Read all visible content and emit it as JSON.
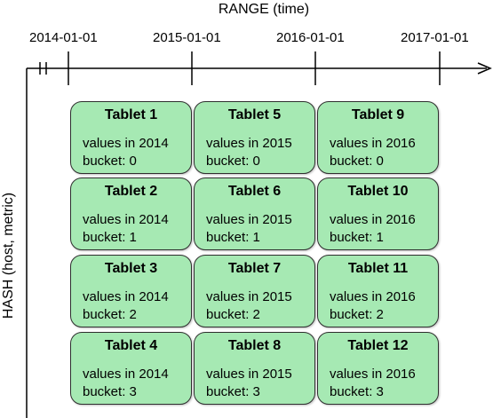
{
  "range_axis": {
    "title": "RANGE (time)",
    "ticks": [
      "2014-01-01",
      "2015-01-01",
      "2016-01-01",
      "2017-01-01"
    ]
  },
  "hash_axis": {
    "title": "HASH (host, metric)"
  },
  "tablets": [
    [
      {
        "title": "Tablet 1",
        "values": "values in 2014",
        "bucket": "bucket: 0"
      },
      {
        "title": "Tablet 5",
        "values": "values in 2015",
        "bucket": "bucket: 0"
      },
      {
        "title": "Tablet 9",
        "values": "values in 2016",
        "bucket": "bucket: 0"
      }
    ],
    [
      {
        "title": "Tablet 2",
        "values": "values in 2014",
        "bucket": "bucket: 1"
      },
      {
        "title": "Tablet 6",
        "values": "values in 2015",
        "bucket": "bucket: 1"
      },
      {
        "title": "Tablet 10",
        "values": "values in 2016",
        "bucket": "bucket: 1"
      }
    ],
    [
      {
        "title": "Tablet 3",
        "values": "values in 2014",
        "bucket": "bucket: 2"
      },
      {
        "title": "Tablet 7",
        "values": "values in 2015",
        "bucket": "bucket: 2"
      },
      {
        "title": "Tablet 11",
        "values": "values in 2016",
        "bucket": "bucket: 2"
      }
    ],
    [
      {
        "title": "Tablet 4",
        "values": "values in 2014",
        "bucket": "bucket: 3"
      },
      {
        "title": "Tablet 8",
        "values": "values in 2015",
        "bucket": "bucket: 3"
      },
      {
        "title": "Tablet 12",
        "values": "values in 2016",
        "bucket": "bucket: 3"
      }
    ]
  ],
  "colors": {
    "tablet_fill": "#a6e9b3",
    "tablet_border": "#2f2f2f",
    "axis": "#000000"
  }
}
